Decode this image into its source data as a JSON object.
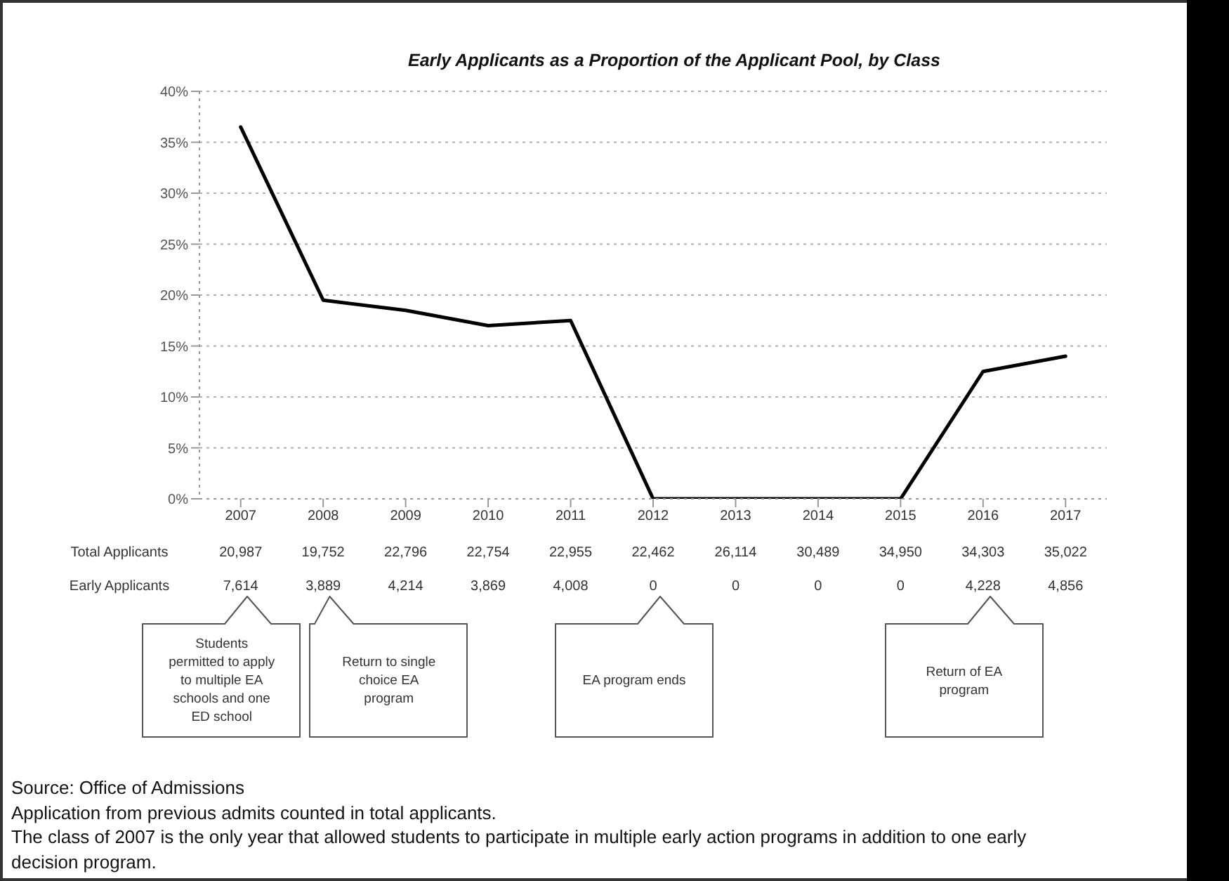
{
  "chart_data": {
    "type": "line",
    "title": "Early Applicants as a Proportion of the Applicant Pool, by Class",
    "categories": [
      "2007",
      "2008",
      "2009",
      "2010",
      "2011",
      "2012",
      "2013",
      "2014",
      "2015",
      "2016",
      "2017"
    ],
    "series": [
      {
        "color": "#000000",
        "values": [
          36.5,
          19.5,
          18.5,
          17,
          17.5,
          0,
          0,
          0,
          0,
          12.5,
          14
        ]
      }
    ],
    "ylim": [
      0,
      40
    ],
    "yticks": [
      {
        "value": 0,
        "label": "0%"
      },
      {
        "value": 5,
        "label": "5%"
      },
      {
        "value": 10,
        "label": "10%"
      },
      {
        "value": 15,
        "label": "15%"
      },
      {
        "value": 20,
        "label": "20%"
      },
      {
        "value": 25,
        "label": "25%"
      },
      {
        "value": 30,
        "label": "30%"
      },
      {
        "value": 35,
        "label": "35%"
      },
      {
        "value": 40,
        "label": "40%"
      }
    ],
    "grid": "y",
    "marker": "none",
    "line_style": "solid",
    "annotations": [
      "Total Applicants",
      "20,987",
      "19,752",
      "22,796",
      "22,754",
      "22,955",
      "22,462",
      "26,114",
      "30,489",
      "34,950",
      "34,303",
      "35,022",
      "Early Applicants",
      "7,614",
      "3,889",
      "4,214",
      "3,869",
      "4,008",
      "0",
      "0",
      "0",
      "0",
      "4,228",
      "4,856",
      "Students permitted to apply to multiple EA schools and one ED school",
      "Return to single choice EA program",
      "EA program ends",
      "Return of EA program",
      "Source: Office of Admissions",
      "Application from previous admits counted in total applicants.",
      "The class of 2007 is the only year that allowed students to participate in multiple early action programs in addition to one early decision program."
    ]
  }
}
